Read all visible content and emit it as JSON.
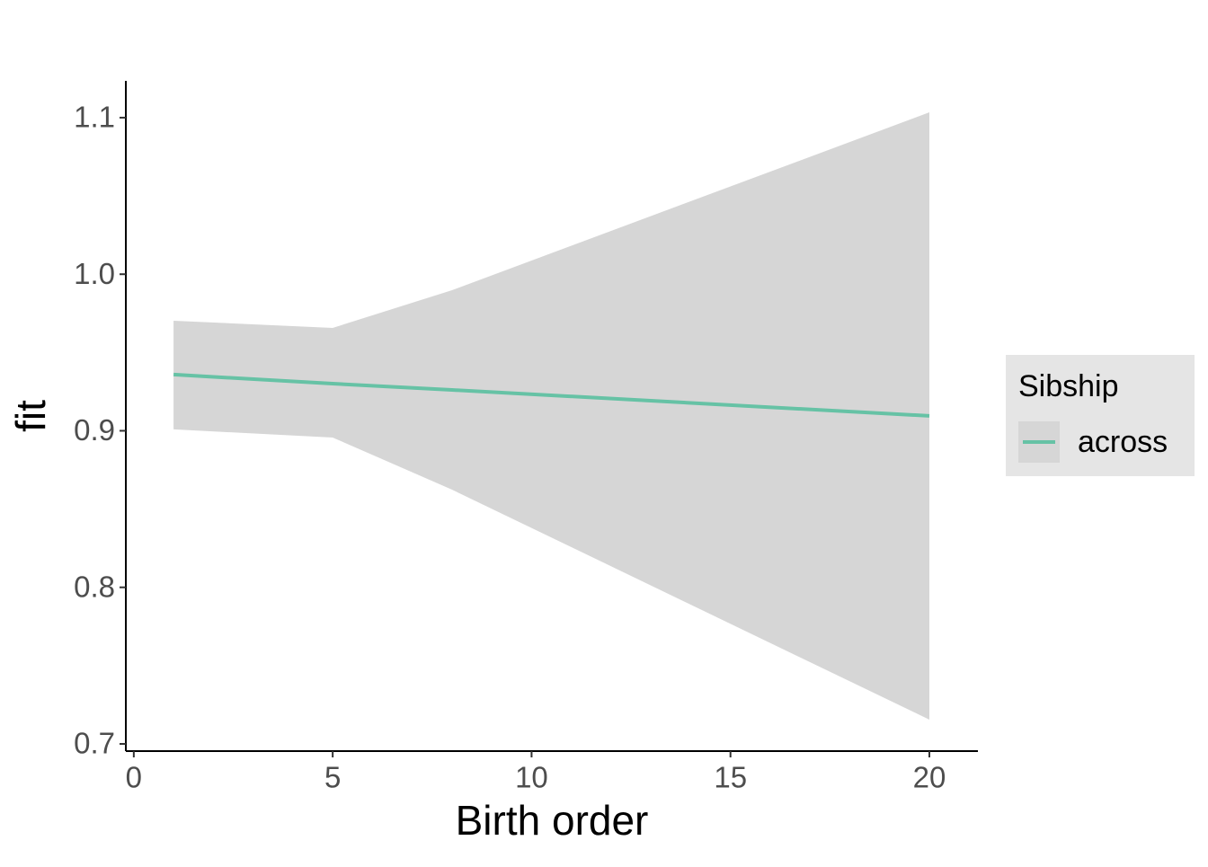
{
  "chart_data": {
    "type": "line",
    "x_label": "Birth order",
    "y_label": "fit",
    "x": [
      1,
      5,
      8,
      20
    ],
    "series": [
      {
        "name": "across",
        "color": "#66c2a5",
        "values": [
          0.9359,
          0.9301,
          0.9261,
          0.9095
        ],
        "lower": [
          0.9009,
          0.8957,
          0.8624,
          0.7155
        ],
        "upper": [
          0.9703,
          0.9657,
          0.9898,
          1.1034
        ],
        "ribbon_color": "#d6d6d6"
      }
    ],
    "legend_title": "Sibship",
    "legend_position": "right",
    "xlim": [
      -0.2,
      21.22
    ],
    "ylim": [
      0.6954,
      1.1235
    ],
    "xticks": [
      0,
      5,
      10,
      15,
      20
    ],
    "yticks": [
      0.7,
      0.8,
      0.9,
      {
        "value": 1,
        "label": "1.0"
      },
      1.1
    ],
    "grid": false
  }
}
